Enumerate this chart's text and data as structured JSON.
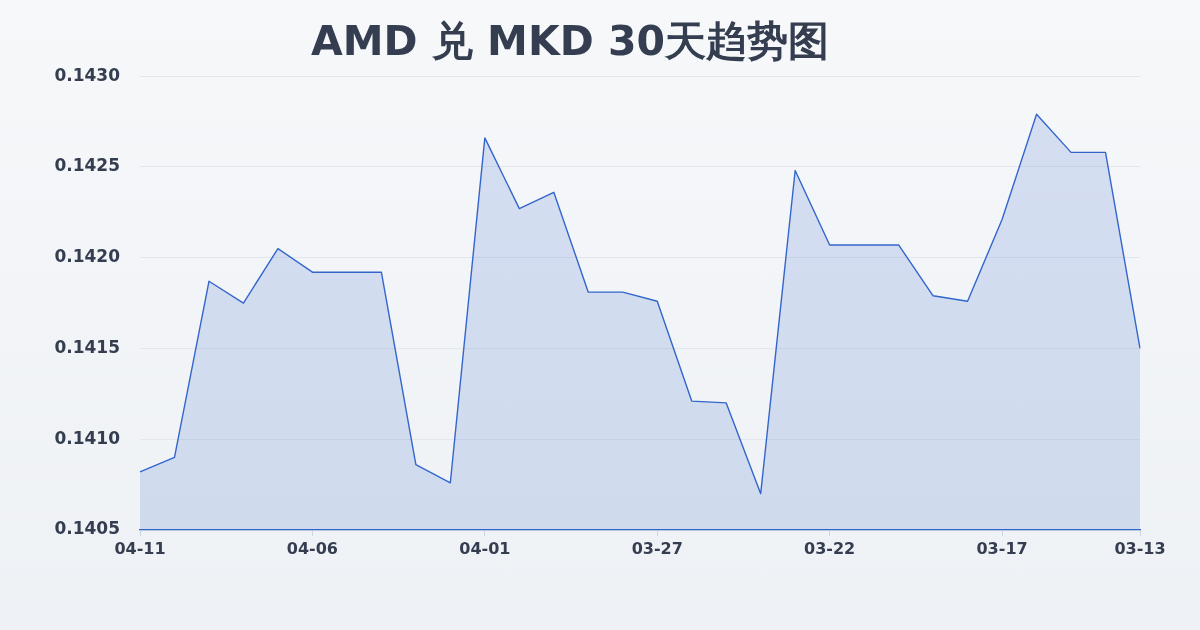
{
  "chart_data": {
    "type": "area",
    "title": "AMD 兑 MKD 30天趋势图",
    "categories": [
      "04-11",
      null,
      null,
      null,
      null,
      "04-06",
      null,
      null,
      null,
      null,
      "04-01",
      null,
      null,
      null,
      null,
      "03-27",
      null,
      null,
      null,
      null,
      "03-22",
      null,
      null,
      null,
      null,
      "03-17",
      null,
      null,
      null,
      "03-13"
    ],
    "series": [
      {
        "color": "#3366cc",
        "values": [
          0.14082,
          0.1409,
          0.14187,
          0.14175,
          0.14205,
          0.14192,
          0.14192,
          0.14192,
          0.14086,
          0.14076,
          0.14266,
          0.14227,
          0.14236,
          0.14181,
          0.14181,
          0.14176,
          0.14121,
          0.1412,
          0.1407,
          0.14248,
          0.14207,
          0.14207,
          0.14207,
          0.14179,
          0.14176,
          0.14221,
          0.14279,
          0.14258,
          0.14258,
          0.1415
        ]
      }
    ],
    "ylim": [
      0.1405,
      0.143
    ],
    "yticks": [
      {
        "value": 0.1405,
        "label": "0.1405"
      },
      {
        "value": 0.141,
        "label": "0.1410"
      },
      {
        "value": 0.1415,
        "label": "0.1415"
      },
      {
        "value": 0.142,
        "label": "0.1420"
      },
      {
        "value": 0.1425,
        "label": "0.1425"
      },
      {
        "value": 0.143,
        "label": "0.1430"
      }
    ],
    "grid": "y"
  }
}
